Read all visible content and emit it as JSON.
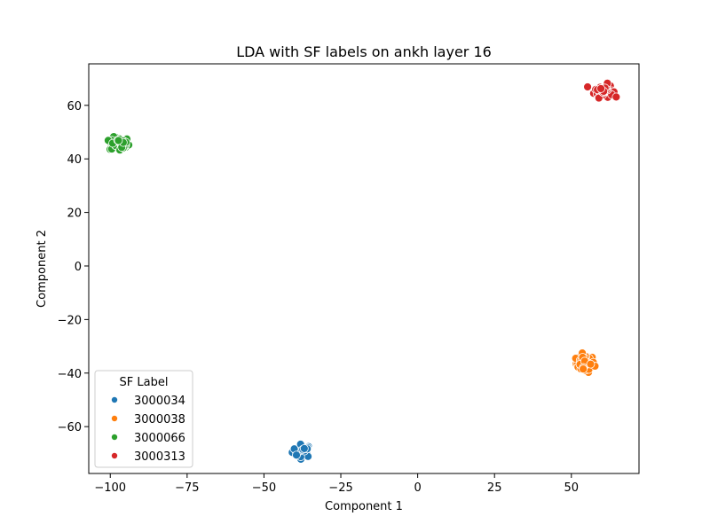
{
  "chart_data": {
    "type": "scatter",
    "title": "LDA with SF labels on ankh layer 16",
    "xlabel": "Component 1",
    "ylabel": "Component 2",
    "xlim": [
      -107,
      72
    ],
    "ylim": [
      -77.5,
      75.5
    ],
    "xticks": [
      -100,
      -75,
      -50,
      -25,
      0,
      25,
      50
    ],
    "yticks": [
      -60,
      -40,
      -20,
      0,
      20,
      40,
      60
    ],
    "xtick_labels": [
      "−100",
      "−75",
      "−50",
      "−25",
      "0",
      "25",
      "50"
    ],
    "ytick_labels": [
      "−60",
      "−40",
      "−20",
      "0",
      "20",
      "40",
      "60"
    ],
    "grid": false,
    "legend": {
      "title": "SF Label",
      "placement": "lower-left"
    },
    "series": [
      {
        "name": "3000034",
        "color": "#1f77b4",
        "center": [
          -37.5,
          -69
        ],
        "spread": [
          1.6,
          1.2
        ],
        "count": 30
      },
      {
        "name": "3000038",
        "color": "#ff7f0e",
        "center": [
          54.5,
          -36.5
        ],
        "spread": [
          1.5,
          1.6
        ],
        "count": 55
      },
      {
        "name": "3000066",
        "color": "#2ca02c",
        "center": [
          -97,
          45.5
        ],
        "spread": [
          1.6,
          1.3
        ],
        "count": 55
      },
      {
        "name": "3000313",
        "color": "#d62728",
        "center": [
          60.5,
          65.5
        ],
        "spread": [
          1.5,
          1.2
        ],
        "count": 60
      }
    ]
  }
}
